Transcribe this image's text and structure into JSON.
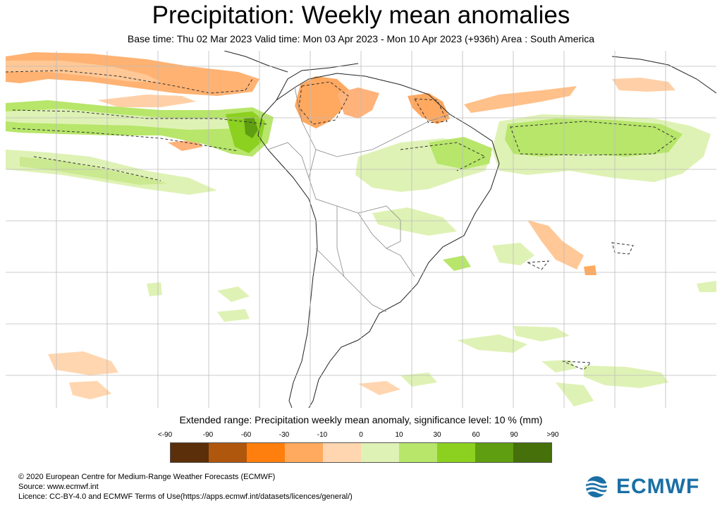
{
  "title": "Precipitation: Weekly mean anomalies",
  "subtitle": "Base time: Thu 02 Mar 2023 Valid time: Mon 03 Apr 2023 - Mon 10 Apr 2023 (+936h) Area : South America",
  "legend": {
    "title": "Extended range: Precipitation weekly mean anomaly, significance level: 10 % (mm)",
    "ticks": [
      "<-90",
      "-90",
      "-60",
      "-30",
      "-10",
      "0",
      "10",
      "30",
      "60",
      "90",
      ">90"
    ],
    "colors": [
      "#5a2f0a",
      "#b0570e",
      "#ff7f0e",
      "#ffaa5e",
      "#ffd6b0",
      "#dff2b5",
      "#b7e66a",
      "#8cd020",
      "#5f9e10",
      "#46700a"
    ]
  },
  "footer": {
    "line1": "© 2020 European Centre for Medium-Range Weather Forecasts (ECMWF)",
    "line2": "Source: www.ecmwf.int",
    "line3": "Licence: CC-BY-4.0 and ECMWF Terms of Use(https://apps.ecmwf.int/datasets/licences/general/)"
  },
  "logo": {
    "text": "ECMWF",
    "color": "#1a6fa5"
  },
  "map": {
    "region": "South America",
    "icons": [
      "ecmwf-logo-icon"
    ]
  }
}
